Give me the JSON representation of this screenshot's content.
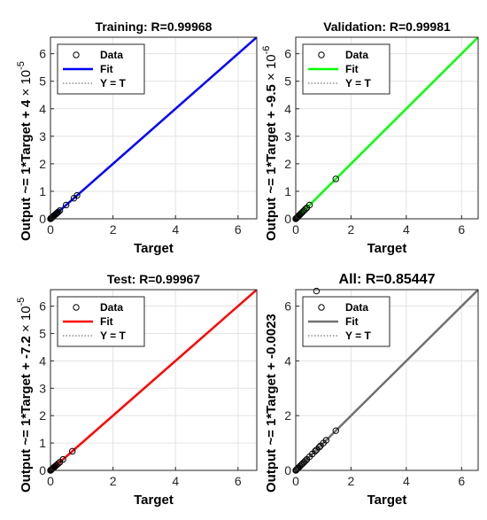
{
  "chart_data": [
    {
      "type": "scatter",
      "title": "Training: R=0.99968",
      "xlabel": "Target",
      "ylabel": "Output ~= 1*Target + 4",
      "ylabel_exponent": "-5",
      "xlim": [
        0,
        6.6
      ],
      "ylim": [
        0,
        6.6
      ],
      "xticks": [
        0,
        2,
        4,
        6
      ],
      "yticks": [
        0,
        1,
        2,
        3,
        4,
        5,
        6
      ],
      "grid": true,
      "legend_position": "top-left",
      "fit_color": "#0000ff",
      "fit": {
        "slope": 1,
        "intercept": 4e-05
      },
      "legend": [
        "Data",
        "Fit",
        "Y = T"
      ],
      "series": [
        {
          "name": "Data",
          "x": [
            0.0,
            0.01,
            0.02,
            0.03,
            0.04,
            0.05,
            0.06,
            0.08,
            0.1,
            0.12,
            0.15,
            0.18,
            0.2,
            0.22,
            0.25,
            0.3,
            0.5,
            0.75,
            0.85
          ],
          "y": [
            0.0,
            0.01,
            0.02,
            0.03,
            0.04,
            0.05,
            0.06,
            0.08,
            0.1,
            0.12,
            0.15,
            0.18,
            0.2,
            0.22,
            0.25,
            0.3,
            0.5,
            0.75,
            0.85
          ]
        }
      ]
    },
    {
      "type": "scatter",
      "title": "Validation: R=0.99981",
      "xlabel": "Target",
      "ylabel": "Output ~= 1*Target + -9.5",
      "ylabel_exponent": "-6",
      "xlim": [
        0,
        6.6
      ],
      "ylim": [
        0,
        6.6
      ],
      "xticks": [
        0,
        2,
        4,
        6
      ],
      "yticks": [
        0,
        1,
        2,
        3,
        4,
        5,
        6
      ],
      "grid": true,
      "legend_position": "top-left",
      "fit_color": "#00ff00",
      "fit": {
        "slope": 1,
        "intercept": -9.5e-06
      },
      "legend": [
        "Data",
        "Fit",
        "Y = T"
      ],
      "series": [
        {
          "name": "Data",
          "x": [
            0.0,
            0.01,
            0.03,
            0.05,
            0.07,
            0.1,
            0.13,
            0.16,
            0.2,
            0.25,
            0.3,
            0.35,
            0.4,
            0.5,
            1.45
          ],
          "y": [
            0.0,
            0.01,
            0.03,
            0.05,
            0.07,
            0.1,
            0.13,
            0.16,
            0.2,
            0.25,
            0.3,
            0.35,
            0.4,
            0.5,
            1.45
          ]
        }
      ]
    },
    {
      "type": "scatter",
      "title": "Test: R=0.99967",
      "xlabel": "Target",
      "ylabel": "Output ~= 1*Target + -7.2",
      "ylabel_exponent": "-5",
      "xlim": [
        0,
        6.6
      ],
      "ylim": [
        0,
        6.6
      ],
      "xticks": [
        0,
        2,
        4,
        6
      ],
      "yticks": [
        0,
        1,
        2,
        3,
        4,
        5,
        6
      ],
      "grid": true,
      "legend_position": "top-left",
      "fit_color": "#ff0000",
      "fit": {
        "slope": 1,
        "intercept": -7.2e-05
      },
      "legend": [
        "Data",
        "Fit",
        "Y = T"
      ],
      "series": [
        {
          "name": "Data",
          "x": [
            0.0,
            0.01,
            0.02,
            0.04,
            0.06,
            0.08,
            0.1,
            0.13,
            0.16,
            0.2,
            0.25,
            0.3,
            0.4,
            0.7
          ],
          "y": [
            0.0,
            0.01,
            0.02,
            0.04,
            0.06,
            0.08,
            0.1,
            0.13,
            0.16,
            0.2,
            0.25,
            0.3,
            0.4,
            0.7
          ]
        }
      ]
    },
    {
      "type": "scatter",
      "title": "All: R=0.85447",
      "xlabel": "Target",
      "ylabel": "Output ~= 1*Target + -0.0023",
      "ylabel_exponent": "",
      "xlim": [
        0,
        6.6
      ],
      "ylim": [
        0,
        6.6
      ],
      "xticks": [
        0,
        2,
        4,
        6
      ],
      "yticks": [
        0,
        2,
        4,
        6
      ],
      "grid": true,
      "legend_position": "top-left",
      "fit_color": "#707070",
      "fit": {
        "slope": 1,
        "intercept": -0.0023
      },
      "legend": [
        "Data",
        "Fit",
        "Y = T"
      ],
      "series": [
        {
          "name": "Data",
          "x": [
            0.0,
            0.02,
            0.05,
            0.08,
            0.1,
            0.15,
            0.2,
            0.25,
            0.3,
            0.35,
            0.4,
            0.5,
            0.6,
            0.7,
            0.75,
            0.85,
            0.9,
            1.0,
            1.1,
            1.45,
            0.75
          ],
          "y": [
            0.0,
            0.02,
            0.05,
            0.08,
            0.1,
            0.15,
            0.2,
            0.25,
            0.3,
            0.35,
            0.4,
            0.5,
            0.6,
            0.7,
            0.75,
            0.85,
            0.9,
            1.0,
            1.1,
            1.45,
            6.55
          ]
        }
      ]
    }
  ]
}
